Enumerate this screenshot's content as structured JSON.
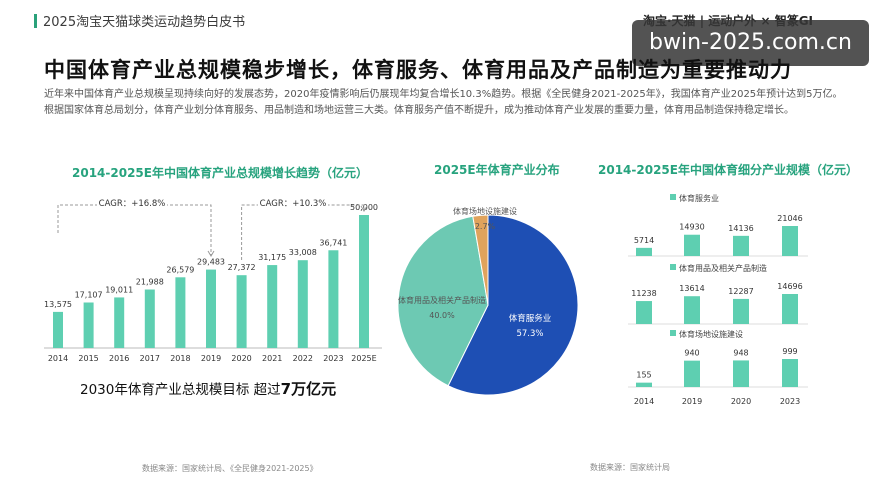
{
  "header": {
    "title": "2025淘宝天猫球类运动趋势白皮书",
    "logo_text": "淘宝·天猫 | 运动户外 × 智篆GI"
  },
  "watermark": "bwin-2025.com.cn",
  "page": {
    "title": "中国体育产业总规模稳步增长，体育服务、体育用品及产品制造为重要推动力",
    "description": "近年来中国体育产业总规模呈现持续向好的发展态势，2020年疫情影响后仍展现年均复合增长10.3%趋势。根据《全民健身2021-2025年》，我国体育产业2025年预计达到5万亿。根据国家体育总局划分，体育产业划分体育服务、用品制造和场地运营三大类。体育服务产值不断提升，成为推动体育产业发展的重要力量，体育用品制造保持稳定增长。",
    "target_prefix": "2030年体育产业总规模目标  超过",
    "target_value": "7万亿元",
    "source_left": "数据来源：国家统计局、《全民健身2021-2025》",
    "source_right": "数据来源：国家统计局"
  },
  "colors": {
    "accent": "#2aa17a",
    "bar": "#5ecfb1",
    "pie_service": "#1e4fb4",
    "pie_goods": "#6dc9b3",
    "pie_venue": "#e0a35c"
  },
  "chart_data": [
    {
      "type": "bar",
      "title": "2014-2025E年中国体育产业总规模增长趋势（亿元）",
      "categories": [
        "2014",
        "2015",
        "2016",
        "2017",
        "2018",
        "2019",
        "2020",
        "2021",
        "2022",
        "2023",
        "2025E"
      ],
      "values": [
        13575,
        17107,
        19011,
        21988,
        26579,
        29483,
        27372,
        31175,
        33008,
        36741,
        50000
      ],
      "value_labels": [
        "13,575",
        "17,107",
        "19,011",
        "21,988",
        "26,579",
        "29,483",
        "27,372",
        "31,175",
        "33,008",
        "36,741",
        "50,000"
      ],
      "annotations": [
        "CAGR：+16.8%",
        "CAGR：+10.3%"
      ],
      "ylim": [
        0,
        52000
      ]
    },
    {
      "type": "pie",
      "title": "2025E年体育产业分布",
      "slices": [
        {
          "name": "体育服务业",
          "value": 57.3,
          "label": "57.3%"
        },
        {
          "name": "体育用品及相关产品制造",
          "value": 40.0,
          "label": "40.0%"
        },
        {
          "name": "体育场地设施建设",
          "value": 2.7,
          "label": "2.7%"
        }
      ]
    },
    {
      "type": "bar",
      "title": "2014-2025E年中国体育细分产业规模（亿元）",
      "categories": [
        "2014",
        "2019",
        "2020",
        "2023"
      ],
      "series": [
        {
          "name": "体育服务业",
          "values": [
            5714,
            14930,
            14136,
            21046
          ]
        },
        {
          "name": "体育用品及相关产品制造",
          "values": [
            11238,
            13614,
            12287,
            14696
          ]
        },
        {
          "name": "体育场地设施建设",
          "values": [
            155,
            940,
            948,
            999
          ]
        }
      ]
    }
  ]
}
